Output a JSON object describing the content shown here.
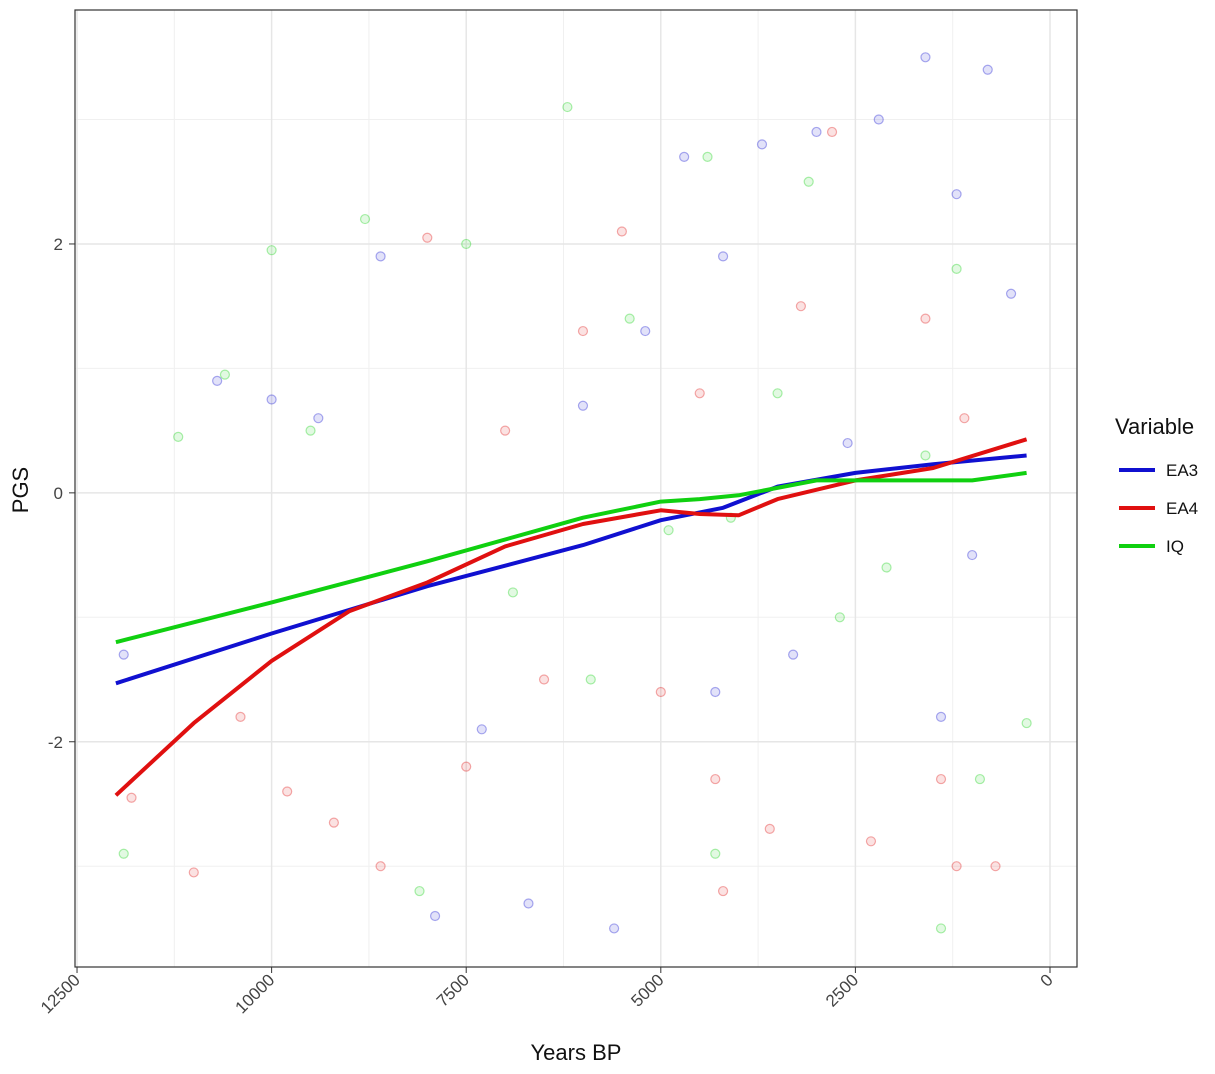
{
  "chart_data": {
    "type": "scatter",
    "x_label": "Years BP",
    "y_label": "PGS",
    "legend_title": "Variable",
    "xlim": [
      12526,
      -347
    ],
    "xticks": [
      12500,
      10000,
      7500,
      5000,
      2500,
      0
    ],
    "ylim": [
      -3.81,
      3.88
    ],
    "yticks": [
      -2,
      0,
      2
    ],
    "grid": true,
    "legend": "right",
    "series": [
      {
        "name": "EA3",
        "color": "#1010d0",
        "x": [
          12000,
          10000,
          8000,
          6000,
          5000,
          4200,
          3500,
          2500,
          1500,
          300
        ],
        "values": [
          -1.53,
          -1.13,
          -0.75,
          -0.42,
          -0.22,
          -0.12,
          0.05,
          0.16,
          0.23,
          0.3
        ],
        "points_x": [
          11900,
          10700,
          10000,
          9400,
          8600,
          7900,
          7300,
          6700,
          6000,
          5600,
          5200,
          4700,
          4300,
          4200,
          3700,
          3300,
          3000,
          2600,
          2200,
          1600,
          1400,
          1200,
          1000,
          800,
          500
        ],
        "points_y": [
          -1.3,
          0.9,
          0.75,
          0.6,
          1.9,
          -3.4,
          -1.9,
          -3.3,
          0.7,
          -3.5,
          1.3,
          2.7,
          -1.6,
          1.9,
          2.8,
          -1.3,
          2.9,
          0.4,
          3.0,
          3.5,
          -1.8,
          2.4,
          -0.5,
          3.4,
          1.6
        ]
      },
      {
        "name": "EA4",
        "color": "#e01010",
        "x": [
          12000,
          11000,
          10000,
          9000,
          8000,
          7000,
          6000,
          5000,
          4500,
          4000,
          3500,
          2500,
          1500,
          300
        ],
        "values": [
          -2.43,
          -1.85,
          -1.35,
          -0.95,
          -0.72,
          -0.43,
          -0.25,
          -0.14,
          -0.17,
          -0.18,
          -0.05,
          0.1,
          0.2,
          0.43
        ],
        "points_x": [
          11800,
          11000,
          10400,
          9800,
          9200,
          8600,
          8000,
          7500,
          7000,
          6500,
          6000,
          5500,
          5000,
          4500,
          4300,
          4200,
          3600,
          3200,
          2800,
          2300,
          1600,
          1400,
          1200,
          1100,
          700
        ],
        "points_y": [
          -2.45,
          -3.05,
          -1.8,
          -2.4,
          -2.65,
          -3.0,
          2.05,
          -2.2,
          0.5,
          -1.5,
          1.3,
          2.1,
          -1.6,
          0.8,
          -2.3,
          -3.2,
          -2.7,
          1.5,
          2.9,
          -2.8,
          1.4,
          -2.3,
          -3.0,
          0.6,
          -3.0
        ]
      },
      {
        "name": "IQ",
        "color": "#10d010",
        "x": [
          12000,
          10000,
          8000,
          6000,
          5000,
          4500,
          4000,
          3000,
          2000,
          1000,
          300
        ],
        "values": [
          -1.2,
          -0.88,
          -0.55,
          -0.2,
          -0.07,
          -0.05,
          -0.02,
          0.1,
          0.1,
          0.1,
          0.16
        ],
        "points_x": [
          11900,
          11200,
          10600,
          10000,
          9500,
          8800,
          8100,
          7500,
          6900,
          6200,
          5900,
          5400,
          4900,
          4400,
          4300,
          4100,
          3500,
          3100,
          2700,
          2100,
          1600,
          1400,
          1200,
          900,
          300
        ],
        "points_y": [
          -2.9,
          0.45,
          0.95,
          1.95,
          0.5,
          2.2,
          -3.2,
          2.0,
          -0.8,
          3.1,
          -1.5,
          1.4,
          -0.3,
          2.7,
          -2.9,
          -0.2,
          0.8,
          2.5,
          -1.0,
          -0.6,
          0.3,
          -3.5,
          1.8,
          -2.3,
          -1.85
        ]
      }
    ]
  }
}
